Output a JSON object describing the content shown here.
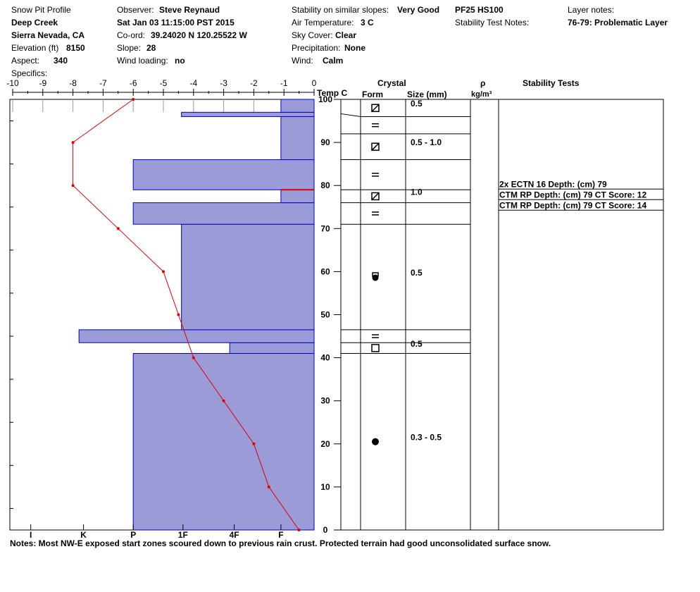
{
  "header": {
    "title": "Snow Pit Profile",
    "location": "Deep Creek",
    "region": "Sierra Nevada, CA",
    "elevation_label": "Elevation (ft)",
    "elevation_value": "8150",
    "aspect_label": "Aspect:",
    "aspect_value": "340",
    "specifics_label": "Specifics:",
    "observer_label": "Observer:",
    "observer_value": "Steve Reynaud",
    "datetime": "Sat Jan 03 11:15:00 PST 2015",
    "coord_label": "Co-ord:",
    "coord_value": "39.24020 N 120.25522 W",
    "slope_label": "Slope:",
    "slope_value": "28",
    "wind_loading_label": "Wind loading:",
    "wind_loading_value": "no",
    "stability_label": "Stability on similar slopes:",
    "stability_value": "Very Good",
    "air_temp_label": "Air Temperature:",
    "air_temp_value": "3 C",
    "sky_label": "Sky Cover:",
    "sky_value": "Clear",
    "precip_label": "Precipitation:",
    "precip_value": "None",
    "wind_label": "Wind:",
    "wind_value": "Calm",
    "pf_hs": "PF25 HS100",
    "stability_test_notes_label": "Stability Test Notes:",
    "layer_notes_label": "Layer notes:",
    "layer_notes_value": "76-79: Problematic Layer"
  },
  "columns": {
    "crystal": "Crystal",
    "form": "Form",
    "size": "Size (mm)",
    "rho": "ρ",
    "rho_unit": "kg/m³",
    "stability_tests": "Stability Tests"
  },
  "footer": {
    "notes": "Notes:  Most NW-E exposed start zones scoured down to previous rain crust.  Protected terrain had good unconsolidated surface snow."
  },
  "chart_data": {
    "type": "snow-profile",
    "temp_axis": {
      "label": "Temp C",
      "range": [
        -10,
        0
      ],
      "ticks": [
        -10,
        -9,
        -8,
        -7,
        -6,
        -5,
        -4,
        -3,
        -2,
        -1,
        0
      ]
    },
    "height_axis": {
      "range": [
        0,
        100
      ],
      "ticks": [
        0,
        10,
        20,
        30,
        40,
        50,
        60,
        70,
        80,
        90,
        100
      ]
    },
    "hardness_axis": {
      "labels": [
        "I",
        "K",
        "P",
        "1F",
        "4F",
        "F"
      ],
      "positions": [
        -9.4,
        -7.65,
        -6,
        -4.35,
        -2.65,
        -1.1
      ]
    },
    "temperature_profile": [
      {
        "t": -0.5,
        "h": 0
      },
      {
        "t": -1.5,
        "h": 10
      },
      {
        "t": -2.0,
        "h": 20
      },
      {
        "t": -3.0,
        "h": 30
      },
      {
        "t": -4.0,
        "h": 40
      },
      {
        "t": -4.5,
        "h": 50
      },
      {
        "t": -5.0,
        "h": 60
      },
      {
        "t": -6.5,
        "h": 70
      },
      {
        "t": -8.0,
        "h": 80
      },
      {
        "t": -8.0,
        "h": 90
      },
      {
        "t": -6.0,
        "h": 100
      }
    ],
    "hardness_layers": [
      {
        "bottom": 0,
        "top": 41,
        "hardness": -6
      },
      {
        "bottom": 41,
        "top": 43.5,
        "hardness": -2.8
      },
      {
        "bottom": 43.5,
        "top": 46.5,
        "hardness": -7.8
      },
      {
        "bottom": 46.5,
        "top": 71,
        "hardness": -4.4
      },
      {
        "bottom": 71,
        "top": 76,
        "hardness": -6
      },
      {
        "bottom": 76,
        "top": 79,
        "hardness": -1.1
      },
      {
        "bottom": 79,
        "top": 86,
        "hardness": -6
      },
      {
        "bottom": 86,
        "top": 96,
        "hardness": -1.1
      },
      {
        "bottom": 96,
        "top": 97,
        "hardness": -4.4
      },
      {
        "bottom": 97,
        "top": 100,
        "hardness": -1.1
      }
    ],
    "problem_layer_height": 79,
    "layers": [
      {
        "top": 100,
        "bottom": 96,
        "form": "faceted-rounded",
        "size": "0.5"
      },
      {
        "top": 96,
        "bottom": 92,
        "form": "crust",
        "size": ""
      },
      {
        "top": 92,
        "bottom": 86,
        "form": "faceted-rounded",
        "size": "0.5 - 1.0"
      },
      {
        "top": 86,
        "bottom": 79,
        "form": "crust",
        "size": ""
      },
      {
        "top": 79,
        "bottom": 76,
        "form": "faceted-rounded",
        "size": "1.0"
      },
      {
        "top": 76,
        "bottom": 71,
        "form": "crust",
        "size": ""
      },
      {
        "top": 71,
        "bottom": 46.5,
        "form": "melt-freeze",
        "size": "0.5"
      },
      {
        "top": 46.5,
        "bottom": 43.5,
        "form": "crust",
        "size": ""
      },
      {
        "top": 43.5,
        "bottom": 41,
        "form": "faceted",
        "size": "0.5"
      },
      {
        "top": 41,
        "bottom": 0,
        "form": "melt-form",
        "size": "0.3 - 0.5"
      }
    ],
    "stability_tests": [
      "2x ECTN 16   Depth: (cm) 79",
      "CTM RP Depth: (cm) 79 CT Score: 12",
      "CTM RP Depth: (cm) 79 CT Score: 14"
    ],
    "colors": {
      "hardness_fill": "#9b9bd7",
      "hardness_edge": "#0000cc",
      "temp_line": "#e00000",
      "problem_layer": "#dd0000"
    }
  }
}
